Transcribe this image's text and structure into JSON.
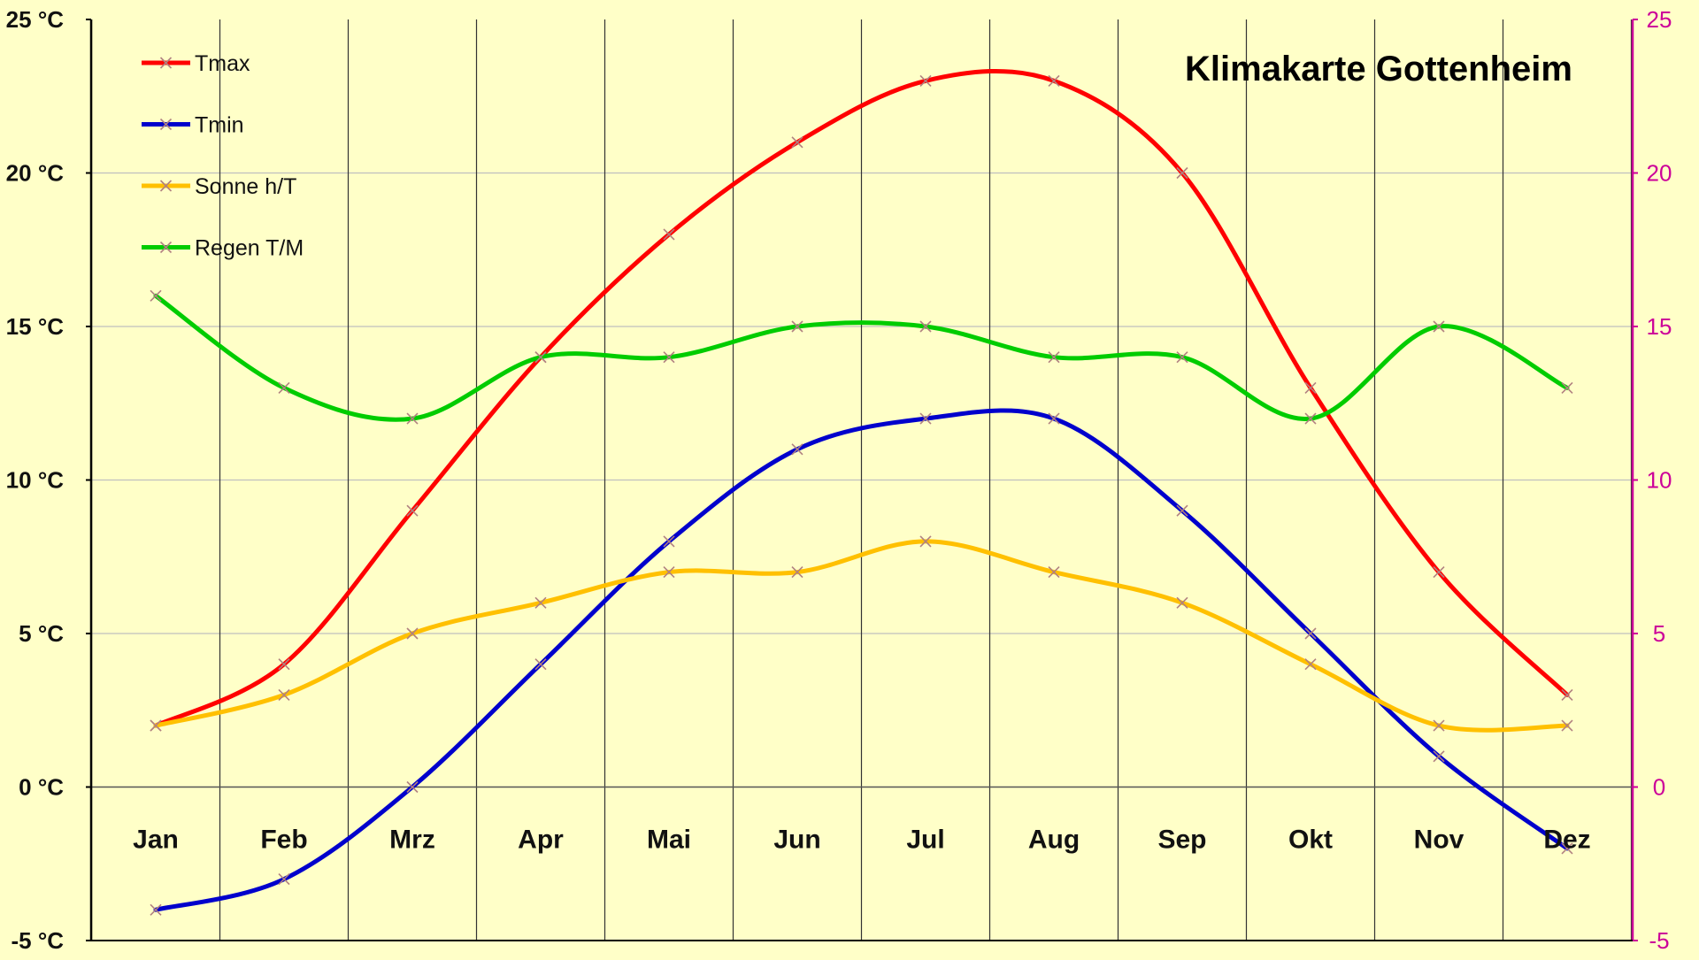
{
  "chart_data": {
    "type": "line",
    "title": "Klimakarte Gottenheim",
    "categories": [
      "Jan",
      "Feb",
      "Mrz",
      "Apr",
      "Mai",
      "Jun",
      "Jul",
      "Aug",
      "Sep",
      "Okt",
      "Nov",
      "Dez"
    ],
    "series": [
      {
        "name": "Tmax",
        "color": "#FF0000",
        "values": [
          2,
          4,
          9,
          14,
          18,
          21,
          23,
          23,
          20,
          13,
          7,
          3
        ]
      },
      {
        "name": "Tmin",
        "color": "#0000CC",
        "values": [
          -4,
          -3,
          0,
          4,
          8,
          11,
          12,
          12,
          9,
          5,
          1,
          -2
        ]
      },
      {
        "name": "Sonne h/T",
        "color": "#FFC000",
        "values": [
          2,
          3,
          5,
          6,
          7,
          7,
          8,
          7,
          6,
          4,
          2,
          2
        ]
      },
      {
        "name": "Regen T/M",
        "color": "#00CC00",
        "values": [
          16,
          13,
          12,
          14,
          14,
          15,
          15,
          14,
          14,
          12,
          15,
          13
        ]
      }
    ],
    "ylim": [
      -5,
      25
    ],
    "yticks_left": [
      "-5 °C",
      "0 °C",
      "5 °C",
      "10 °C",
      "15 °C",
      "20 °C",
      "25 °C"
    ],
    "yticks_right": [
      "-5",
      "0",
      "5",
      "10",
      "15",
      "20",
      "25"
    ],
    "yticks_right_color": "#CC0099",
    "legend_position": "top-left",
    "grid": true,
    "marker": "x",
    "marker_color": "#B08080",
    "background_color": "#FFFFC8"
  }
}
